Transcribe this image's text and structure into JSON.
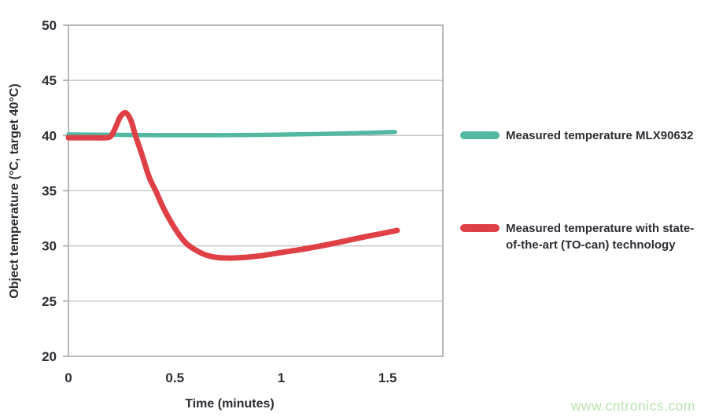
{
  "watermark": {
    "text": "www.cntronics.com",
    "color": "#b7e2ae"
  },
  "styles": {
    "text_color": "#2d2d34",
    "axis_color": "#a9a9a9",
    "grid_color": "#c4c4c4",
    "background": "#ffffff"
  },
  "chart_data": {
    "type": "line",
    "title": "",
    "xlabel": "Time (minutes)",
    "ylabel": "Object temperature (°C, target 40°C)",
    "xlim": [
      0,
      1.76
    ],
    "ylim": [
      20,
      50
    ],
    "xticks": [
      0,
      0.5,
      1,
      1.5
    ],
    "xtick_labels": [
      "0",
      "0.5",
      "1",
      "1.5"
    ],
    "yticks": [
      20,
      25,
      30,
      35,
      40,
      45,
      50
    ],
    "ytick_labels": [
      "20",
      "25",
      "30",
      "35",
      "40",
      "45",
      "50"
    ],
    "grid": "horizontal-only",
    "legend_position": "right",
    "series": [
      {
        "name": "Measured temperature MLX90632",
        "color": "#52b8a2",
        "line_width": 5.5,
        "points": [
          [
            0,
            40.1
          ],
          [
            0.15,
            40.08
          ],
          [
            0.3,
            40.05
          ],
          [
            0.5,
            40.03
          ],
          [
            0.7,
            40.03
          ],
          [
            0.9,
            40.06
          ],
          [
            1.05,
            40.1
          ],
          [
            1.2,
            40.15
          ],
          [
            1.35,
            40.22
          ],
          [
            1.45,
            40.27
          ],
          [
            1.535,
            40.32
          ]
        ]
      },
      {
        "name": "Measured temperature with state-of-the-art (TO-can) technology",
        "color": "#de4045",
        "line_width": 7,
        "points": [
          [
            0,
            39.8
          ],
          [
            0.06,
            39.8
          ],
          [
            0.12,
            39.8
          ],
          [
            0.17,
            39.8
          ],
          [
            0.2,
            39.95
          ],
          [
            0.225,
            40.9
          ],
          [
            0.245,
            41.75
          ],
          [
            0.27,
            42.05
          ],
          [
            0.295,
            41.3
          ],
          [
            0.315,
            40.0
          ],
          [
            0.345,
            38.3
          ],
          [
            0.38,
            36.2
          ],
          [
            0.41,
            35.0
          ],
          [
            0.45,
            33.3
          ],
          [
            0.5,
            31.6
          ],
          [
            0.55,
            30.3
          ],
          [
            0.6,
            29.6
          ],
          [
            0.65,
            29.15
          ],
          [
            0.7,
            28.95
          ],
          [
            0.76,
            28.9
          ],
          [
            0.82,
            28.95
          ],
          [
            0.9,
            29.1
          ],
          [
            1.0,
            29.4
          ],
          [
            1.1,
            29.7
          ],
          [
            1.2,
            30.05
          ],
          [
            1.3,
            30.45
          ],
          [
            1.4,
            30.85
          ],
          [
            1.48,
            31.15
          ],
          [
            1.545,
            31.4
          ]
        ]
      }
    ]
  }
}
